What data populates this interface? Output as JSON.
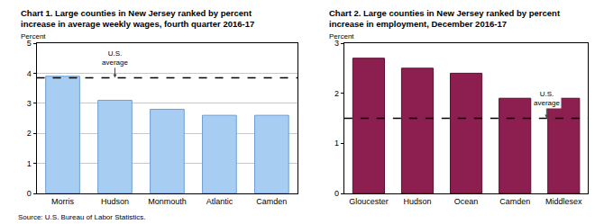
{
  "chart_data": [
    {
      "type": "bar",
      "title": "Chart 1. Large counties in New Jersey ranked by percent\nincrease in average weekly wages, fourth quarter 2016-17",
      "y_label": "Percent",
      "categories": [
        "Morris",
        "Hudson",
        "Monmouth",
        "Atlantic",
        "Camden"
      ],
      "values": [
        3.9,
        3.1,
        2.8,
        2.6,
        2.6
      ],
      "color": "#a8cdf2",
      "ylim": [
        0,
        5
      ],
      "yticks": [
        0,
        1,
        2,
        3,
        4,
        5
      ],
      "grid": true,
      "reference": {
        "label": "U.S.\naverage",
        "value": 3.85
      }
    },
    {
      "type": "bar",
      "title": "Chart 2. Large counties in New Jersey ranked by percent\nincrease in employment, December 2016-17",
      "y_label": "Percent",
      "categories": [
        "Gloucester",
        "Hudson",
        "Ocean",
        "Camden",
        "Middlesex"
      ],
      "values": [
        2.7,
        2.5,
        2.4,
        1.9,
        1.9
      ],
      "color": "#8c1f4f",
      "ylim": [
        0,
        3
      ],
      "yticks": [
        0,
        1,
        2,
        3
      ],
      "grid": false,
      "reference": {
        "label": "U.S.\naverage",
        "value": 1.5
      }
    }
  ],
  "source": "Source: U.S. Bureau of Labor Statistics."
}
